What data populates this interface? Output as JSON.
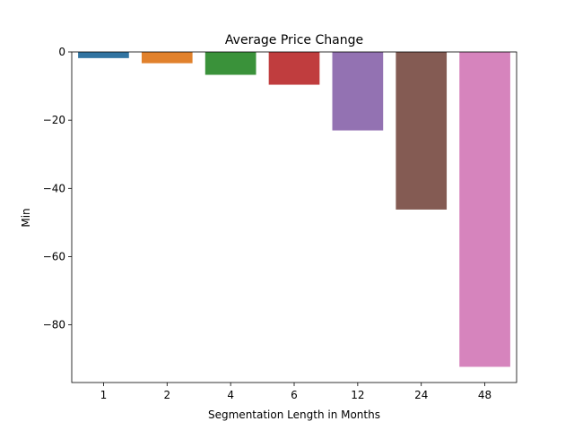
{
  "chart_data": {
    "type": "bar",
    "title": "Average Price Change",
    "xlabel": "Segmentation Length in Months",
    "ylabel": "Min",
    "categories": [
      "1",
      "2",
      "4",
      "6",
      "12",
      "24",
      "48"
    ],
    "values": [
      -1.8,
      -3.3,
      -6.7,
      -9.6,
      -23.0,
      -46.2,
      -92.3
    ],
    "colors": [
      "#3274a1",
      "#e1812c",
      "#3a923a",
      "#c03d3e",
      "#9372b2",
      "#845b53",
      "#d684bd"
    ],
    "ylim": [
      -96.9,
      0
    ],
    "yticks": [
      0,
      -20,
      -40,
      -60,
      -80
    ],
    "ytick_labels": [
      "0",
      "−20",
      "−40",
      "−60",
      "−80"
    ],
    "grid": false,
    "legend": "none"
  }
}
